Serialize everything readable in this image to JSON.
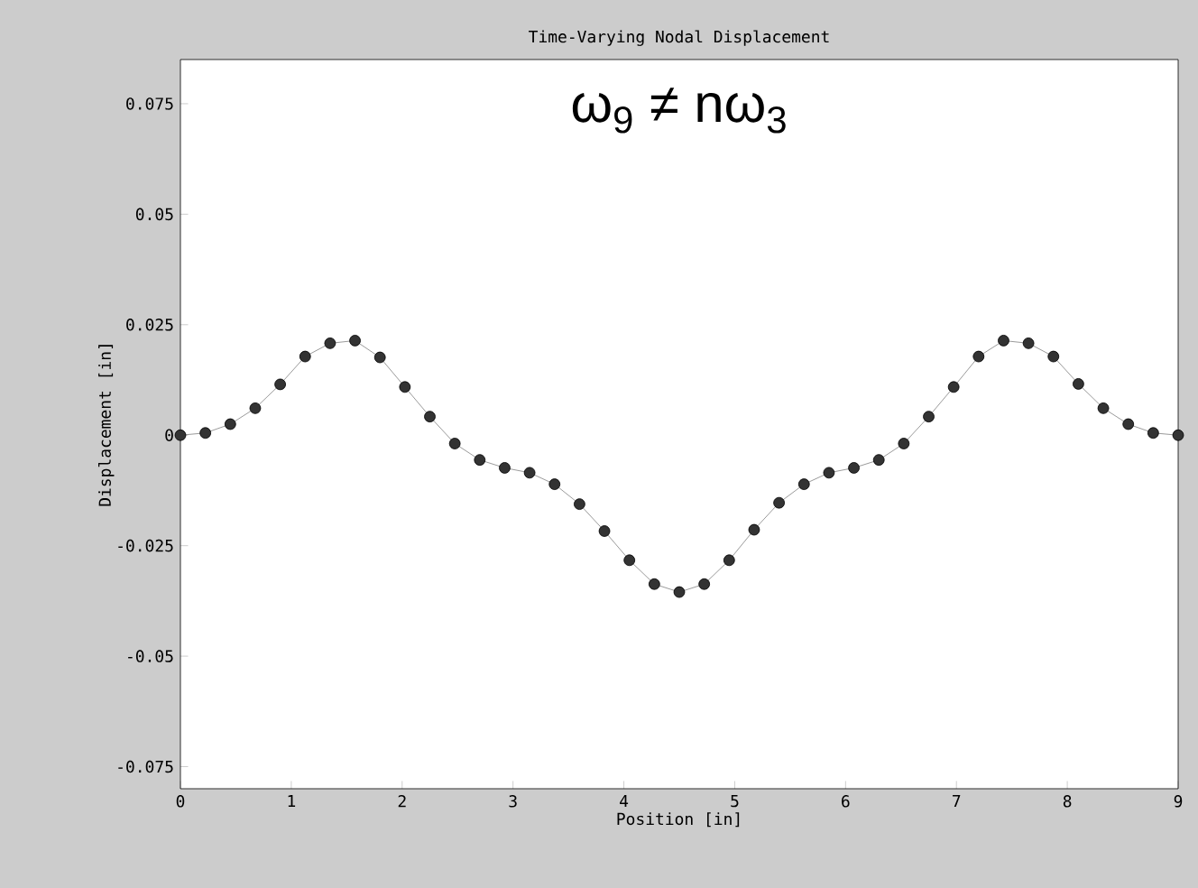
{
  "chart_data": {
    "type": "line",
    "title": "Time-Varying Nodal Displacement",
    "xlabel": "Position [in]",
    "ylabel": "Displacement [in]",
    "annotations": [
      "ω$_{9}$ ≠ nω$_{3}$"
    ],
    "x": [
      0,
      0.225,
      0.45,
      0.675,
      0.9,
      1.125,
      1.35,
      1.575,
      1.8,
      2.025,
      2.25,
      2.475,
      2.7,
      2.925,
      3.15,
      3.375,
      3.6,
      3.825,
      4.05,
      4.275,
      4.5,
      4.725,
      4.95,
      5.175,
      5.4,
      5.625,
      5.85,
      6.075,
      6.3,
      6.525,
      6.75,
      6.975,
      7.2,
      7.425,
      7.65,
      7.875,
      8.1,
      8.325,
      8.55,
      8.775,
      9
    ],
    "series": [
      {
        "color": "#333333",
        "values": [
          0,
          0.0005,
          0.0025,
          0.0061,
          0.0115,
          0.0178,
          0.0208,
          0.0214,
          0.0176,
          0.0109,
          0.0042,
          -0.0019,
          -0.0056,
          -0.0074,
          -0.0085,
          -0.0111,
          -0.0156,
          -0.0217,
          -0.0283,
          -0.0337,
          -0.0355,
          -0.0337,
          -0.0283,
          -0.0214,
          -0.0153,
          -0.0111,
          -0.0085,
          -0.0074,
          -0.0056,
          -0.0019,
          0.0042,
          0.0109,
          0.0178,
          0.0214,
          0.0208,
          0.0178,
          0.0116,
          0.0061,
          0.0025,
          0.0005,
          0
        ]
      }
    ],
    "xlim": [
      0,
      9
    ],
    "ylim": [
      -0.08,
      0.085
    ],
    "xticks": [
      0,
      1,
      2,
      3,
      4,
      5,
      6,
      7,
      8,
      9
    ],
    "yticks": [
      -0.075,
      -0.05,
      -0.025,
      0,
      0.025,
      0.05,
      0.075
    ],
    "marker": "circle",
    "line_style": "solid",
    "grid": false
  }
}
